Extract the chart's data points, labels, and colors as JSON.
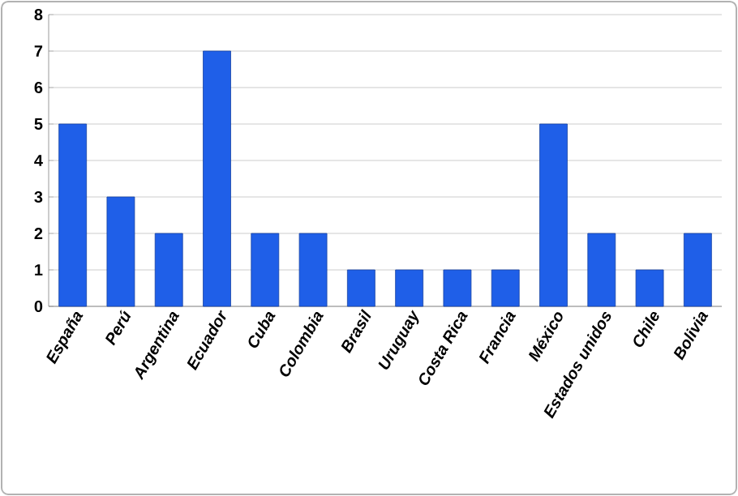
{
  "chart_data": {
    "type": "bar",
    "categories": [
      "España",
      "Perú",
      "Argentina",
      "Ecuador",
      "Cuba",
      "Colombia",
      "Brasil",
      "Uruguay",
      "Costa Rica",
      "Francia",
      "México",
      "Estados unidos",
      "Chile",
      "Bolivia"
    ],
    "values": [
      5,
      3,
      2,
      7,
      2,
      2,
      1,
      1,
      1,
      1,
      5,
      2,
      1,
      2
    ],
    "color": "#1f5fe8",
    "ylim": [
      0,
      8
    ],
    "yticks": [
      0,
      1,
      2,
      3,
      4,
      5,
      6,
      7,
      8
    ],
    "grid": "y"
  }
}
